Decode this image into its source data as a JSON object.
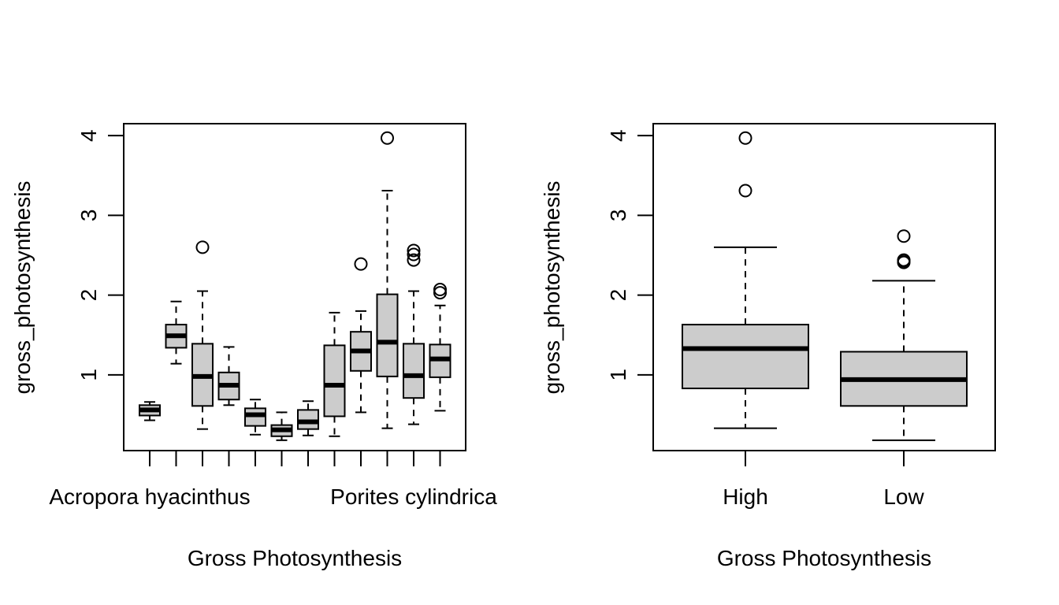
{
  "chart_data": [
    {
      "type": "boxplot",
      "xlabel": "Gross Photosynthesis",
      "ylabel": "gross_photosynthesis",
      "ylim": [
        0.05,
        4.15
      ],
      "yticks": [
        1,
        2,
        3,
        4
      ],
      "category_labels_shown": [
        "Acropora hyacinthus",
        "Porites cylindrica"
      ],
      "boxes": [
        {
          "whisker_low": 0.43,
          "q1": 0.49,
          "median": 0.56,
          "q3": 0.62,
          "whisker_high": 0.66,
          "outliers": []
        },
        {
          "whisker_low": 1.14,
          "q1": 1.34,
          "median": 1.49,
          "q3": 1.63,
          "whisker_high": 1.92,
          "outliers": []
        },
        {
          "whisker_low": 0.32,
          "q1": 0.61,
          "median": 0.98,
          "q3": 1.39,
          "whisker_high": 2.05,
          "outliers": [
            2.6
          ]
        },
        {
          "whisker_low": 0.62,
          "q1": 0.69,
          "median": 0.87,
          "q3": 1.03,
          "whisker_high": 1.35,
          "outliers": []
        },
        {
          "whisker_low": 0.25,
          "q1": 0.36,
          "median": 0.5,
          "q3": 0.58,
          "whisker_high": 0.69,
          "outliers": []
        },
        {
          "whisker_low": 0.18,
          "q1": 0.23,
          "median": 0.31,
          "q3": 0.37,
          "whisker_high": 0.53,
          "outliers": []
        },
        {
          "whisker_low": 0.24,
          "q1": 0.32,
          "median": 0.41,
          "q3": 0.56,
          "whisker_high": 0.67,
          "outliers": []
        },
        {
          "whisker_low": 0.23,
          "q1": 0.48,
          "median": 0.87,
          "q3": 1.37,
          "whisker_high": 1.78,
          "outliers": []
        },
        {
          "whisker_low": 0.53,
          "q1": 1.05,
          "median": 1.3,
          "q3": 1.54,
          "whisker_high": 1.8,
          "outliers": [
            2.39
          ]
        },
        {
          "whisker_low": 0.33,
          "q1": 0.98,
          "median": 1.41,
          "q3": 2.01,
          "whisker_high": 3.31,
          "outliers": [
            3.97
          ]
        },
        {
          "whisker_low": 0.38,
          "q1": 0.71,
          "median": 0.99,
          "q3": 1.39,
          "whisker_high": 2.05,
          "outliers": [
            2.44,
            2.51,
            2.56
          ]
        },
        {
          "whisker_low": 0.55,
          "q1": 0.97,
          "median": 1.2,
          "q3": 1.38,
          "whisker_high": 1.87,
          "outliers": [
            2.03,
            2.07
          ]
        }
      ]
    },
    {
      "type": "boxplot",
      "xlabel": "Gross Photosynthesis",
      "ylabel": "gross_photosynthesis",
      "ylim": [
        0.05,
        4.15
      ],
      "yticks": [
        1,
        2,
        3,
        4
      ],
      "categories": [
        "High",
        "Low"
      ],
      "boxes": [
        {
          "whisker_low": 0.33,
          "q1": 0.83,
          "median": 1.33,
          "q3": 1.63,
          "whisker_high": 2.6,
          "outliers": [
            3.31,
            3.97
          ]
        },
        {
          "whisker_low": 0.18,
          "q1": 0.61,
          "median": 0.94,
          "q3": 1.29,
          "whisker_high": 2.18,
          "outliers": [
            2.41,
            2.43,
            2.44,
            2.74
          ]
        }
      ]
    }
  ]
}
